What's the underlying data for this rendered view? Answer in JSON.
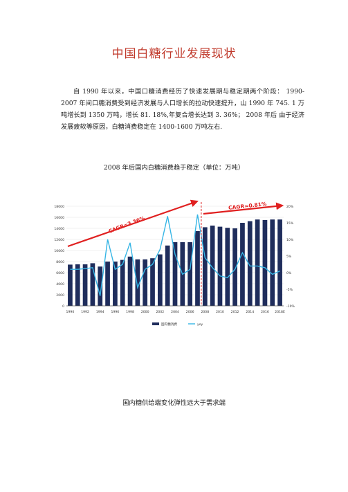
{
  "document": {
    "title": "中国白糖行业发展现状",
    "paragraph": "自 1990 年以来，中国口糖消费经历了快速发展期与稳定期两个阶段： 1990-2007 年间口糖消费受到经济发展与人口增长的拉动快速提升，山 1990 年 745. 1 万吨增长到 1350 万吨，增长 81. 18%,年复合增长达到 3. 36%； 2008 年后 由于经济发展疲软等原因，白糖消费稳定在 1400-1600 万吨左右.",
    "chart_caption": "2008 年后国内白糖消费趋于稳定（单位：万吨）",
    "next_caption": "国内糖供给端变化弹性远大于需求端"
  },
  "chart_data": {
    "type": "bar",
    "categories": [
      "1990",
      "1991",
      "1992",
      "1993",
      "1994",
      "1995",
      "1996",
      "1997",
      "1998",
      "1999",
      "2000",
      "2001",
      "2002",
      "2003",
      "2004",
      "2005",
      "2006",
      "2007",
      "2008",
      "2009",
      "2010",
      "2011",
      "2012",
      "2013",
      "2014",
      "2015",
      "2016",
      "2017",
      "2018E"
    ],
    "x_tick_labels": [
      "1990",
      "1992",
      "1994",
      "1996",
      "1998",
      "2000",
      "2002",
      "2004",
      "2006",
      "2008",
      "2010",
      "2012",
      "2014",
      "2016",
      "2018E"
    ],
    "series": [
      {
        "name": "国内糖消费",
        "type": "bar",
        "axis": "left",
        "color": "#1f2d5c",
        "values": [
          7451,
          7500,
          7500,
          7700,
          7100,
          8000,
          8000,
          8300,
          8900,
          8400,
          8400,
          8600,
          9300,
          10900,
          11500,
          11500,
          11500,
          13500,
          14200,
          14500,
          14300,
          14100,
          14000,
          15000,
          15300,
          15600,
          15500,
          15600,
          15600
        ]
      },
      {
        "name": "yoy",
        "type": "line",
        "axis": "right",
        "color": "#35b5e5",
        "values": [
          1.0,
          1.0,
          1.2,
          1.5,
          -7.0,
          10.0,
          1.0,
          2.5,
          9.0,
          -4.5,
          1.0,
          2.5,
          7.0,
          17.0,
          5.5,
          -0.5,
          1.0,
          17.5,
          4.5,
          1.5,
          -1.0,
          -1.5,
          1.0,
          6.0,
          2.0,
          2.0,
          1.5,
          -0.5,
          0.5
        ]
      }
    ],
    "ylim_left": [
      0,
      18000
    ],
    "yticks_left": [
      "0",
      "2000",
      "4000",
      "6000",
      "8000",
      "10000",
      "12000",
      "14000",
      "16000",
      "18000"
    ],
    "ylim_right": [
      -10,
      20
    ],
    "yticks_right": [
      "-10%",
      "-5%",
      "0%",
      "5%",
      "10%",
      "15%",
      "20%"
    ],
    "annotations": [
      {
        "text": "CAGR=3.36%",
        "from": "1990",
        "to": "2007",
        "color": "#e02020"
      },
      {
        "text": "CAGR=0.81%",
        "from": "2008",
        "to": "2018E",
        "color": "#e02020"
      }
    ],
    "divider_after": "2007",
    "legend_position": "bottom"
  }
}
